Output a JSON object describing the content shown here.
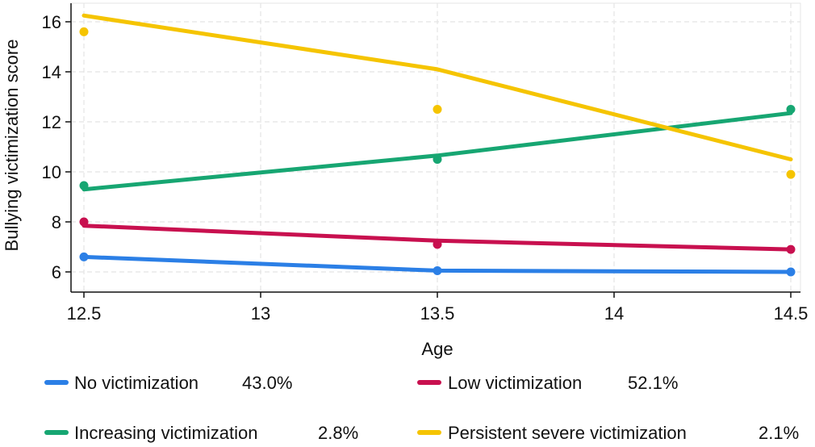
{
  "chart_data": {
    "type": "line",
    "xlabel": "Age",
    "ylabel": "Bullying victimization score",
    "xlim": [
      12.5,
      14.5
    ],
    "ylim": [
      5.5,
      16.6
    ],
    "xticks": [
      12.5,
      13,
      13.5,
      14,
      14.5
    ],
    "xtick_labels": [
      "12.5",
      "13",
      "13.5",
      "14",
      "14.5"
    ],
    "yticks": [
      6,
      8,
      10,
      12,
      14,
      16
    ],
    "ytick_labels": [
      "6",
      "8",
      "10",
      "12",
      "14",
      "16"
    ],
    "grid": true,
    "legend_position": "bottom",
    "series": [
      {
        "name": "No victimization",
        "percent": "43.0%",
        "color": "#2b7fe6",
        "fitted": {
          "x": [
            12.5,
            13.5,
            14.5
          ],
          "y": [
            6.6,
            6.05,
            6.0
          ]
        },
        "observed": {
          "x": [
            12.5,
            13.5,
            14.5
          ],
          "y": [
            6.6,
            6.05,
            6.0
          ]
        }
      },
      {
        "name": "Low victimization",
        "percent": "52.1%",
        "color": "#c8104f",
        "fitted": {
          "x": [
            12.5,
            13.5,
            14.5
          ],
          "y": [
            7.85,
            7.25,
            6.9
          ]
        },
        "observed": {
          "x": [
            12.5,
            13.5,
            14.5
          ],
          "y": [
            8.0,
            7.1,
            6.9
          ]
        }
      },
      {
        "name": "Increasing victimization",
        "percent": "2.8%",
        "color": "#17a672",
        "fitted": {
          "x": [
            12.5,
            13.5,
            14.5
          ],
          "y": [
            9.3,
            10.65,
            12.35
          ]
        },
        "observed": {
          "x": [
            12.5,
            13.5,
            14.5
          ],
          "y": [
            9.45,
            10.5,
            12.5
          ]
        }
      },
      {
        "name": "Persistent severe victimization",
        "percent": "2.1%",
        "color": "#f5c400",
        "fitted": {
          "x": [
            12.5,
            13.5,
            14.5
          ],
          "y": [
            16.25,
            14.1,
            10.5
          ]
        },
        "observed": {
          "x": [
            12.5,
            13.5,
            14.5
          ],
          "y": [
            15.6,
            12.5,
            9.9
          ]
        }
      }
    ]
  }
}
